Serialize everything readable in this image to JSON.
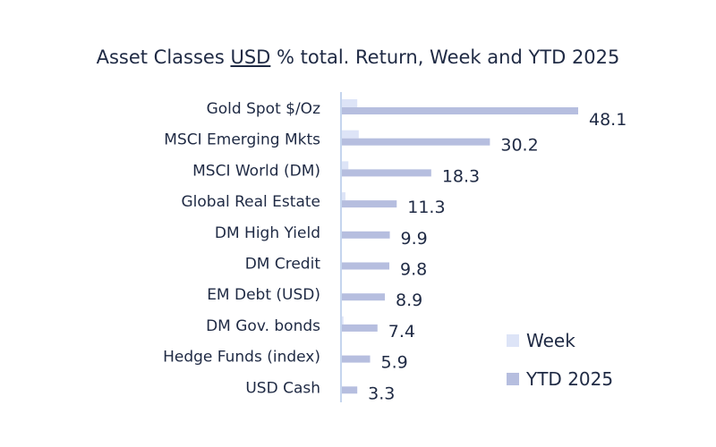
{
  "chart_data": {
    "type": "bar",
    "orientation": "horizontal",
    "title_parts": [
      "Asset Classes ",
      "USD",
      " % total. Return, Week and YTD 2025"
    ],
    "categories": [
      "Gold Spot   $/Oz",
      "MSCI Emerging Mkts",
      "MSCI World (DM)",
      "Global Real Estate",
      "DM High Yield",
      "DM Credit",
      "EM Debt (USD)",
      "DM Gov. bonds",
      "Hedge Funds (index)",
      "USD Cash"
    ],
    "series": [
      {
        "name": "Week",
        "color": "#dde4f7",
        "values": [
          3.3,
          3.6,
          1.5,
          0.9,
          0.1,
          0.2,
          0.1,
          0.5,
          0.2,
          0.1
        ]
      },
      {
        "name": "YTD 2025",
        "color": "#b6bedf",
        "values": [
          48.1,
          30.2,
          18.3,
          11.3,
          9.9,
          9.8,
          8.9,
          7.4,
          5.9,
          3.3
        ]
      }
    ],
    "data_labels": [
      "48.1",
      "30.2",
      "18.3",
      "11.3",
      "9.9",
      "9.8",
      "8.9",
      "7.4",
      "5.9",
      "3.3"
    ],
    "xlim": [
      0,
      50
    ],
    "grid": false,
    "legend_position": "bottom-right",
    "axis_color": "#c5d5ee",
    "text_color": "#1f2a44"
  }
}
